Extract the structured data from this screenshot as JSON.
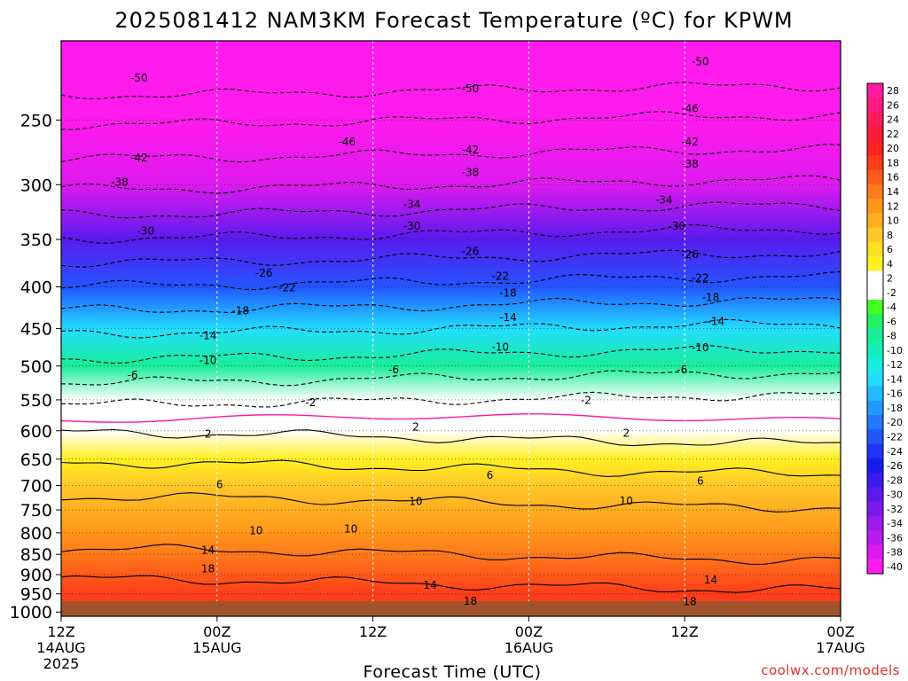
{
  "chart_data": {
    "type": "heatmap",
    "title": "2025081412 NAM3KM Forecast Temperature (ºC) for KPWM",
    "xlabel": "Forecast Time (UTC)",
    "ylabel": "",
    "credit": "coolwx.com/models",
    "x_ticks": [
      {
        "hour": 0,
        "lines": [
          "12Z",
          "14AUG",
          "2025"
        ]
      },
      {
        "hour": 12,
        "lines": [
          "00Z",
          "15AUG"
        ]
      },
      {
        "hour": 24,
        "lines": [
          "12Z"
        ]
      },
      {
        "hour": 36,
        "lines": [
          "00Z",
          "16AUG"
        ]
      },
      {
        "hour": 48,
        "lines": [
          "12Z"
        ]
      },
      {
        "hour": 60,
        "lines": [
          "00Z",
          "17AUG"
        ]
      }
    ],
    "xlim_hours": [
      0,
      60
    ],
    "y_ticks": [
      "250",
      "300",
      "350",
      "400",
      "450",
      "500",
      "550",
      "600",
      "650",
      "700",
      "750",
      "800",
      "850",
      "900",
      "950",
      "1000"
    ],
    "y_tick_values": [
      250,
      300,
      350,
      400,
      450,
      500,
      550,
      600,
      650,
      700,
      750,
      800,
      850,
      900,
      950,
      1000
    ],
    "ylim_hpa": [
      1012,
      200
    ],
    "colorbar": {
      "levels": [
        "28",
        "26",
        "24",
        "22",
        "20",
        "18",
        "16",
        "14",
        "12",
        "10",
        "8",
        "6",
        "4",
        "2",
        "-2",
        "-4",
        "-6",
        "-8",
        "-10",
        "-12",
        "-14",
        "-16",
        "-18",
        "-20",
        "-22",
        "-24",
        "-26",
        "-28",
        "-30",
        "-32",
        "-34",
        "-36",
        "-38",
        "-40"
      ],
      "colors": [
        "#ff1aa0",
        "#ff1a80",
        "#ff1a5c",
        "#ff1a3a",
        "#ff2020",
        "#ff3c1a",
        "#ff5a1a",
        "#ff7a1a",
        "#ff961a",
        "#ffae20",
        "#ffc82a",
        "#ffe020",
        "#fff020",
        "#ffffff",
        "#ffffff",
        "#44ff22",
        "#22f066",
        "#18ee99",
        "#18eebb",
        "#18eedd",
        "#22ddff",
        "#22bbff",
        "#2299ff",
        "#2277ff",
        "#2255ff",
        "#2233ff",
        "#1a1aee",
        "#3a1aee",
        "#5a1aee",
        "#7a1aee",
        "#9a1aee",
        "#bb1aee",
        "#dd1aee",
        "#ff1aee"
      ]
    },
    "profile": [
      {
        "p": 200,
        "t": -56
      },
      {
        "p": 250,
        "t": -46
      },
      {
        "p": 300,
        "t": -38
      },
      {
        "p": 350,
        "t": -29
      },
      {
        "p": 400,
        "t": -21
      },
      {
        "p": 450,
        "t": -14
      },
      {
        "p": 500,
        "t": -8
      },
      {
        "p": 550,
        "t": -2
      },
      {
        "p": 600,
        "t": 1
      },
      {
        "p": 650,
        "t": 5
      },
      {
        "p": 700,
        "t": 8
      },
      {
        "p": 750,
        "t": 11
      },
      {
        "p": 800,
        "t": 12
      },
      {
        "p": 850,
        "t": 14
      },
      {
        "p": 900,
        "t": 17
      },
      {
        "p": 950,
        "t": 19
      },
      {
        "p": 1000,
        "t": 23
      }
    ],
    "contour_labels": [
      {
        "text": "-50",
        "hour": 6,
        "p": 222
      },
      {
        "text": "-50",
        "hour": 31.5,
        "p": 229
      },
      {
        "text": "-50",
        "hour": 49.2,
        "p": 212
      },
      {
        "text": "-46",
        "hour": 22,
        "p": 266
      },
      {
        "text": "-46",
        "hour": 48.4,
        "p": 242
      },
      {
        "text": "-42",
        "hour": 6,
        "p": 278
      },
      {
        "text": "-42",
        "hour": 31.5,
        "p": 272
      },
      {
        "text": "-42",
        "hour": 48.4,
        "p": 266
      },
      {
        "text": "-38",
        "hour": 4.5,
        "p": 298
      },
      {
        "text": "-38",
        "hour": 31.5,
        "p": 290
      },
      {
        "text": "-38",
        "hour": 48.4,
        "p": 283
      },
      {
        "text": "-34",
        "hour": 27,
        "p": 317
      },
      {
        "text": "-34",
        "hour": 46.4,
        "p": 313
      },
      {
        "text": "-30",
        "hour": 6.5,
        "p": 342
      },
      {
        "text": "-30",
        "hour": 27,
        "p": 337
      },
      {
        "text": "-30",
        "hour": 47.4,
        "p": 337
      },
      {
        "text": "-26",
        "hour": 15.6,
        "p": 385
      },
      {
        "text": "-26",
        "hour": 31.5,
        "p": 362
      },
      {
        "text": "-26",
        "hour": 48.4,
        "p": 365
      },
      {
        "text": "-22",
        "hour": 17.4,
        "p": 401
      },
      {
        "text": "-22",
        "hour": 33.8,
        "p": 388
      },
      {
        "text": "-22",
        "hour": 49.2,
        "p": 390
      },
      {
        "text": "-18",
        "hour": 13.8,
        "p": 428
      },
      {
        "text": "-18",
        "hour": 34.4,
        "p": 407
      },
      {
        "text": "-18",
        "hour": 50,
        "p": 412
      },
      {
        "text": "-14",
        "hour": 11.3,
        "p": 459
      },
      {
        "text": "-14",
        "hour": 34.4,
        "p": 436
      },
      {
        "text": "-14",
        "hour": 50.4,
        "p": 441
      },
      {
        "text": "-10",
        "hour": 11.3,
        "p": 492
      },
      {
        "text": "-10",
        "hour": 33.8,
        "p": 474
      },
      {
        "text": "-10",
        "hour": 49.2,
        "p": 475
      },
      {
        "text": "-6",
        "hour": 5.5,
        "p": 513
      },
      {
        "text": "-6",
        "hour": 25.6,
        "p": 505
      },
      {
        "text": "-6",
        "hour": 47.8,
        "p": 505
      },
      {
        "text": "-2",
        "hour": 19.2,
        "p": 554
      },
      {
        "text": "-2",
        "hour": 40.4,
        "p": 551
      },
      {
        "text": "2",
        "hour": 11.3,
        "p": 606
      },
      {
        "text": "2",
        "hour": 27.3,
        "p": 594
      },
      {
        "text": "2",
        "hour": 43.5,
        "p": 604
      },
      {
        "text": "6",
        "hour": 12.2,
        "p": 698
      },
      {
        "text": "6",
        "hour": 33,
        "p": 680
      },
      {
        "text": "6",
        "hour": 49.2,
        "p": 691
      },
      {
        "text": "10",
        "hour": 15,
        "p": 795
      },
      {
        "text": "10",
        "hour": 27.3,
        "p": 732
      },
      {
        "text": "10",
        "hour": 43.5,
        "p": 731
      },
      {
        "text": "10",
        "hour": 22.3,
        "p": 791
      },
      {
        "text": "14",
        "hour": 11.3,
        "p": 840
      },
      {
        "text": "14",
        "hour": 28.4,
        "p": 927
      },
      {
        "text": "14",
        "hour": 50,
        "p": 914
      },
      {
        "text": "18",
        "hour": 11.3,
        "p": 885
      },
      {
        "text": "18",
        "hour": 31.5,
        "p": 970
      },
      {
        "text": "18",
        "hour": 48.4,
        "p": 971
      }
    ]
  }
}
